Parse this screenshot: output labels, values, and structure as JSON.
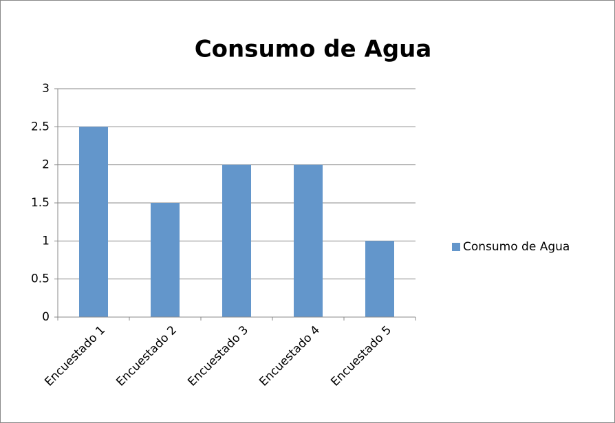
{
  "chart_data": {
    "type": "bar",
    "title": "Consumo de Agua",
    "categories": [
      "Encuestado 1",
      "Encuestado 2",
      "Encuestado 3",
      "Encuestado 4",
      "Encuestado 5"
    ],
    "series": [
      {
        "name": "Consumo de Agua",
        "color": "#6396cb",
        "values": [
          2.5,
          1.5,
          2,
          2,
          1
        ]
      }
    ],
    "ylim": [
      0,
      3
    ],
    "yticks": [
      0,
      0.5,
      1,
      1.5,
      2,
      2.5,
      3
    ],
    "grid": true,
    "legend": "right"
  }
}
